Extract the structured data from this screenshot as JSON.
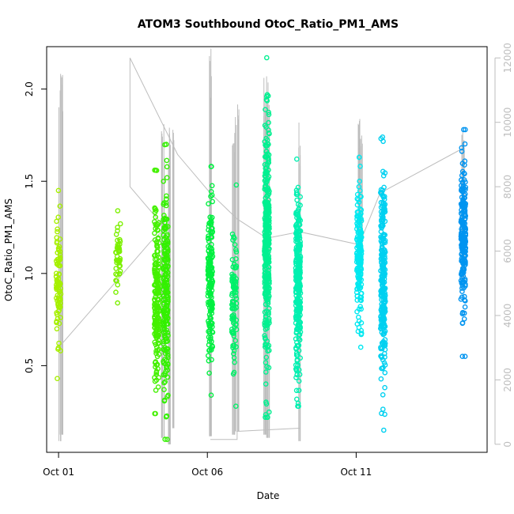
{
  "chart_data": {
    "type": "scatter",
    "title": "ATOM3 Southbound OtoC_Ratio_PM1_AMS",
    "xlabel": "Date",
    "ylabel": "OtoC_Ratio_PM1_AMS",
    "x_ticks": [
      {
        "label": "Oct 01",
        "day": 1.0
      },
      {
        "label": "Oct 06",
        "day": 6.0
      },
      {
        "label": "Oct 11",
        "day": 11.0
      }
    ],
    "xlim_days": [
      0.6,
      15.4
    ],
    "y_ticks": [
      0.5,
      1.0,
      1.5,
      2.0
    ],
    "ylim": [
      0.03,
      2.23
    ],
    "secondary_y_ticks": [
      0,
      2000,
      4000,
      6000,
      8000,
      10000,
      12000
    ],
    "secondary_ylim": [
      -250,
      12350
    ],
    "grid": false,
    "point_style": "open-circle",
    "color_encoding": "time (yellow-green to blue)",
    "series": [
      {
        "x_day": 1.0,
        "y_range": [
          0.43,
          1.45
        ],
        "color": "#a6f000",
        "n": 90
      },
      {
        "x_day": 3.0,
        "y_range": [
          0.84,
          1.34
        ],
        "color": "#7cf000",
        "n": 45
      },
      {
        "x_day": 4.3,
        "y_range": [
          0.24,
          1.56
        ],
        "color": "#44f000",
        "n": 200
      },
      {
        "x_day": 4.6,
        "y_range": [
          0.1,
          1.7
        ],
        "color": "#33f000",
        "n": 220
      },
      {
        "x_day": 6.1,
        "y_range": [
          0.34,
          1.58
        ],
        "color": "#00f040",
        "n": 180
      },
      {
        "x_day": 6.9,
        "y_range": [
          0.28,
          1.48
        ],
        "color": "#00f068",
        "n": 90
      },
      {
        "x_day": 8.0,
        "y_range": [
          0.22,
          2.17
        ],
        "color": "#00f090",
        "n": 350
      },
      {
        "x_day": 9.05,
        "y_range": [
          0.28,
          1.62
        ],
        "color": "#00f0b0",
        "n": 300
      },
      {
        "x_day": 11.1,
        "y_range": [
          0.6,
          1.63
        ],
        "color": "#00e8f0",
        "n": 180
      },
      {
        "x_day": 11.9,
        "y_range": [
          0.15,
          1.74
        ],
        "color": "#00d0f0",
        "n": 260
      },
      {
        "x_day": 14.6,
        "y_range": [
          0.55,
          1.78
        ],
        "color": "#0094f0",
        "n": 220
      }
    ],
    "secondary_line": {
      "color": "#bdbdbd",
      "points": [
        [
          1.0,
          3000
        ],
        [
          4.1,
          6300
        ],
        [
          4.6,
          6700
        ],
        [
          3.4,
          8000
        ],
        [
          3.4,
          12000
        ],
        [
          5.0,
          9000
        ],
        [
          6.1,
          7800
        ],
        [
          7.0,
          7000
        ],
        [
          8.0,
          6400
        ],
        [
          9.1,
          6600
        ],
        [
          11.1,
          6200
        ],
        [
          11.8,
          7800
        ],
        [
          14.6,
          9200
        ]
      ],
      "spikes": [
        {
          "x_day": 1.05,
          "low": 100,
          "high": 12050
        },
        {
          "x_day": 1.1,
          "low": 300,
          "high": 11800
        },
        {
          "x_day": 4.5,
          "low": 200,
          "high": 10200
        },
        {
          "x_day": 4.7,
          "low": 0,
          "high": 10000
        },
        {
          "x_day": 4.85,
          "low": 500,
          "high": 9800
        },
        {
          "x_day": 6.1,
          "low": 250,
          "high": 12300
        },
        {
          "x_day": 6.9,
          "low": 300,
          "high": 10100
        },
        {
          "x_day": 7.0,
          "low": 400,
          "high": 11200
        },
        {
          "x_day": 7.95,
          "low": 300,
          "high": 11800
        },
        {
          "x_day": 8.05,
          "low": 200,
          "high": 12000
        },
        {
          "x_day": 9.1,
          "low": 100,
          "high": 10000
        },
        {
          "x_day": 11.1,
          "low": 5200,
          "high": 10200
        },
        {
          "x_day": 11.15,
          "low": 5400,
          "high": 9800
        },
        {
          "x_day": 14.6,
          "low": 5000,
          "high": 9700
        }
      ],
      "floor": [
        [
          6.1,
          150
        ],
        [
          7.0,
          150
        ],
        [
          7.0,
          400
        ],
        [
          9.1,
          500
        ]
      ]
    }
  }
}
